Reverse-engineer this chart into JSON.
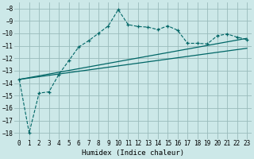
{
  "xlabel": "Humidex (Indice chaleur)",
  "bg_color": "#cce8e8",
  "grid_color": "#99bbbb",
  "line_color": "#006666",
  "xlim": [
    -0.5,
    23.5
  ],
  "ylim": [
    -18.5,
    -7.5
  ],
  "yticks": [
    -8,
    -9,
    -10,
    -11,
    -12,
    -13,
    -14,
    -15,
    -16,
    -17,
    -18
  ],
  "xticks": [
    0,
    1,
    2,
    3,
    4,
    5,
    6,
    7,
    8,
    9,
    10,
    11,
    12,
    13,
    14,
    15,
    16,
    17,
    18,
    19,
    20,
    21,
    22,
    23
  ],
  "line1_x": [
    0,
    1,
    2,
    3,
    4,
    5,
    6,
    7,
    8,
    9,
    10,
    11,
    12,
    13,
    14,
    15,
    16,
    17,
    18,
    19,
    20,
    21,
    22,
    23
  ],
  "line1_y": [
    -13.7,
    -18.0,
    -14.8,
    -14.7,
    -13.3,
    -12.2,
    -11.1,
    -10.6,
    -10.0,
    -9.4,
    -8.1,
    -9.3,
    -9.45,
    -9.5,
    -9.7,
    -9.4,
    -9.75,
    -10.8,
    -10.8,
    -10.85,
    -10.2,
    -10.05,
    -10.3,
    -10.5
  ],
  "line2_x": [
    0,
    23
  ],
  "line2_y": [
    -13.7,
    -10.4
  ],
  "line3_x": [
    0,
    23
  ],
  "line3_y": [
    -13.7,
    -11.2
  ],
  "tick_fontsize": 5.5,
  "xlabel_fontsize": 6.5
}
